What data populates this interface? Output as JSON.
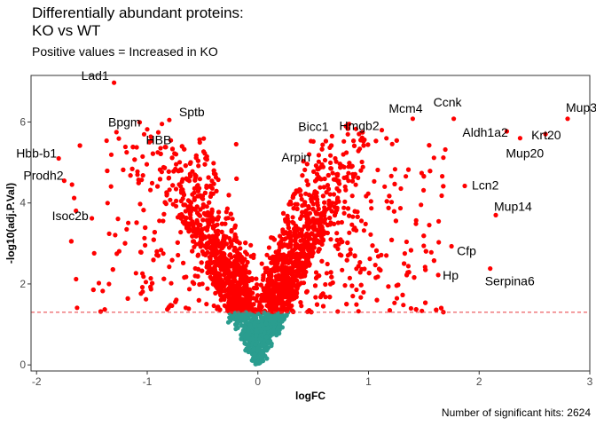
{
  "title_line1": "Differentially abundant proteins:",
  "title_line2": "KO vs WT",
  "subtitle": "Positive values = Increased in KO",
  "caption": "Number of significant hits: 2624",
  "colors": {
    "significant": "#ff0000",
    "not_significant": "#2a9d8f",
    "threshold_line": "#e8383d",
    "panel_border": "#333333"
  },
  "chart_data": {
    "type": "scatter",
    "xlabel": "logFC",
    "ylabel": "-log10(adj.P.Val)",
    "xlim": [
      -2.05,
      3.0
    ],
    "ylim": [
      -0.15,
      7.15
    ],
    "x_ticks": [
      -2,
      -1,
      0,
      1,
      2,
      3
    ],
    "y_ticks": [
      0,
      2,
      4,
      6
    ],
    "threshold_y": 1.3,
    "grid": false,
    "significant_count": 2624,
    "labeled_points": [
      {
        "label": "Lad1",
        "x": -1.3,
        "y": 6.97
      },
      {
        "label": "Sptb",
        "x": -0.8,
        "y": 6.05
      },
      {
        "label": "Bpgm",
        "x": -1.0,
        "y": 5.82
      },
      {
        "label": "HBB",
        "x": -0.98,
        "y": 5.5
      },
      {
        "label": "Hbb-b1",
        "x": -1.8,
        "y": 5.1
      },
      {
        "label": "Prodh2",
        "x": -1.75,
        "y": 4.55
      },
      {
        "label": "Isoc2b",
        "x": -1.5,
        "y": 3.62
      },
      {
        "label": "Bicc1",
        "x": 0.67,
        "y": 5.65
      },
      {
        "label": "Hmgb2",
        "x": 1.12,
        "y": 5.8
      },
      {
        "label": "Arpin",
        "x": 0.55,
        "y": 5.02
      },
      {
        "label": "Mcm4",
        "x": 1.4,
        "y": 6.08
      },
      {
        "label": "Ccnk",
        "x": 1.77,
        "y": 6.08
      },
      {
        "label": "Aldh1a2",
        "x": 2.25,
        "y": 5.77
      },
      {
        "label": "Mup3",
        "x": 2.8,
        "y": 6.08
      },
      {
        "label": "Krt20",
        "x": 2.6,
        "y": 5.7
      },
      {
        "label": "Mup20",
        "x": 2.37,
        "y": 5.6
      },
      {
        "label": "Lcn2",
        "x": 1.87,
        "y": 4.42
      },
      {
        "label": "Mup14",
        "x": 2.15,
        "y": 3.7
      },
      {
        "label": "Cfp",
        "x": 1.75,
        "y": 2.93
      },
      {
        "label": "Hp",
        "x": 1.63,
        "y": 2.22
      },
      {
        "label": "Serpina6",
        "x": 2.1,
        "y": 2.38
      }
    ]
  }
}
